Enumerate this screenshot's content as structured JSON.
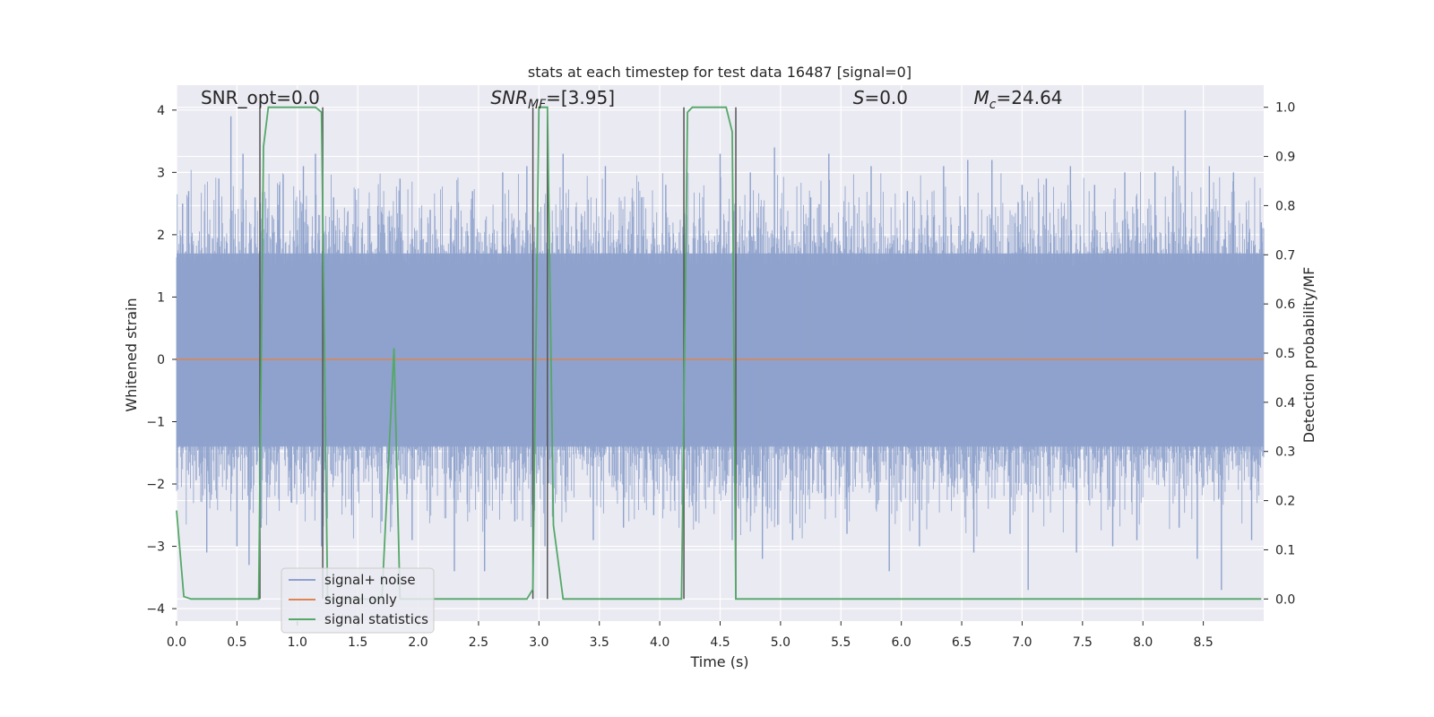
{
  "chart_data": {
    "type": "line",
    "title": "stats at each timestep for test data 16487 [signal=0]",
    "xlabel": "Time (s)",
    "ylabel": "Whitened strain",
    "y2label": "Detection probability/MF",
    "xlim": [
      0.0,
      9.0
    ],
    "ylim": [
      -4.2,
      4.4
    ],
    "y2lim": [
      -0.045,
      1.045
    ],
    "x_ticks": [
      "0.0",
      "0.5",
      "1.0",
      "1.5",
      "2.0",
      "2.5",
      "3.0",
      "3.5",
      "4.0",
      "4.5",
      "5.0",
      "5.5",
      "6.0",
      "6.5",
      "7.0",
      "7.5",
      "8.0",
      "8.5"
    ],
    "x_tick_values": [
      0.0,
      0.5,
      1.0,
      1.5,
      2.0,
      2.5,
      3.0,
      3.5,
      4.0,
      4.5,
      5.0,
      5.5,
      6.0,
      6.5,
      7.0,
      7.5,
      8.0,
      8.5
    ],
    "y_ticks": [
      "−4",
      "−3",
      "−2",
      "−1",
      "0",
      "1",
      "2",
      "3",
      "4"
    ],
    "y_tick_values": [
      -4,
      -3,
      -2,
      -1,
      0,
      1,
      2,
      3,
      4
    ],
    "y2_ticks": [
      "0.0",
      "0.1",
      "0.2",
      "0.3",
      "0.4",
      "0.5",
      "0.6",
      "0.7",
      "0.8",
      "0.9",
      "1.0"
    ],
    "y2_tick_values": [
      0.0,
      0.1,
      0.2,
      0.3,
      0.4,
      0.5,
      0.6,
      0.7,
      0.8,
      0.9,
      1.0
    ],
    "grid": true,
    "legend_position": "lower-left",
    "annotations": [
      {
        "label": "SNR_opt=0.0",
        "x": 0.2,
        "y": 4.1
      },
      {
        "label": "SNR",
        "sub": "MF",
        "suffix": "=[3.95]",
        "italic": true,
        "x": 2.6,
        "y": 4.1
      },
      {
        "label": "S",
        "sub": "",
        "suffix": "=0.0",
        "italic": true,
        "x": 5.6,
        "y": 4.1
      },
      {
        "label": "M",
        "sub": "c",
        "suffix": "=24.64",
        "italic": true,
        "x": 6.6,
        "y": 4.1
      }
    ],
    "series": [
      {
        "name": "signal+ noise",
        "color": "#8ea2cc",
        "noise_band": [
          -1.4,
          1.7
        ],
        "peaks": [
          [
            0.05,
            2.5
          ],
          [
            0.1,
            2.7
          ],
          [
            0.25,
            -3.1
          ],
          [
            0.35,
            2.9
          ],
          [
            0.45,
            3.9
          ],
          [
            0.5,
            -3.0
          ],
          [
            0.55,
            3.3
          ],
          [
            0.6,
            -3.3
          ],
          [
            0.65,
            2.6
          ],
          [
            0.7,
            -2.7
          ],
          [
            0.85,
            2.8
          ],
          [
            0.95,
            -2.3
          ],
          [
            1.05,
            3.1
          ],
          [
            1.15,
            3.3
          ],
          [
            1.2,
            -3.0
          ],
          [
            1.3,
            2.6
          ],
          [
            1.45,
            -2.5
          ],
          [
            1.6,
            2.3
          ],
          [
            1.7,
            -2.6
          ],
          [
            1.85,
            2.9
          ],
          [
            1.95,
            -2.9
          ],
          [
            2.1,
            2.4
          ],
          [
            2.3,
            -3.4
          ],
          [
            2.45,
            2.7
          ],
          [
            2.55,
            -3.4
          ],
          [
            2.7,
            3.0
          ],
          [
            2.8,
            -2.6
          ],
          [
            2.9,
            3.1
          ],
          [
            3.05,
            -3.0
          ],
          [
            3.2,
            3.3
          ],
          [
            3.35,
            2.2
          ],
          [
            3.45,
            -2.9
          ],
          [
            3.55,
            3.1
          ],
          [
            3.7,
            -2.7
          ],
          [
            3.85,
            2.6
          ],
          [
            3.95,
            -2.5
          ],
          [
            4.05,
            2.8
          ],
          [
            4.3,
            -2.6
          ],
          [
            4.5,
            3.3
          ],
          [
            4.6,
            -2.9
          ],
          [
            4.75,
            3.0
          ],
          [
            4.85,
            -3.2
          ],
          [
            4.95,
            3.4
          ],
          [
            5.1,
            -2.9
          ],
          [
            5.25,
            2.6
          ],
          [
            5.4,
            3.3
          ],
          [
            5.55,
            -2.8
          ],
          [
            5.75,
            3.1
          ],
          [
            5.9,
            -3.4
          ],
          [
            6.05,
            2.7
          ],
          [
            6.15,
            -3.0
          ],
          [
            6.35,
            3.1
          ],
          [
            6.55,
            3.2
          ],
          [
            6.6,
            -3.1
          ],
          [
            6.75,
            3.2
          ],
          [
            6.9,
            -2.8
          ],
          [
            7.0,
            2.8
          ],
          [
            7.05,
            -3.7
          ],
          [
            7.2,
            2.9
          ],
          [
            7.4,
            3.1
          ],
          [
            7.45,
            -3.1
          ],
          [
            7.6,
            2.8
          ],
          [
            7.75,
            -3.0
          ],
          [
            7.85,
            3.0
          ],
          [
            7.95,
            -2.9
          ],
          [
            8.1,
            3.0
          ],
          [
            8.25,
            3.1
          ],
          [
            8.3,
            -2.7
          ],
          [
            8.35,
            4.0
          ],
          [
            8.45,
            -3.2
          ],
          [
            8.55,
            3.1
          ],
          [
            8.65,
            -3.7
          ],
          [
            8.75,
            3.0
          ],
          [
            8.9,
            -2.9
          ],
          [
            8.98,
            2.2
          ]
        ]
      },
      {
        "name": "signal only",
        "color": "#dd8452",
        "x": [
          0.0,
          9.0
        ],
        "y": [
          0.0,
          0.0
        ]
      },
      {
        "name": "signal statistics",
        "color": "#55a868",
        "axis": "right",
        "x": [
          0.0,
          0.06,
          0.12,
          0.68,
          0.72,
          0.76,
          1.15,
          1.2,
          1.25,
          1.7,
          1.8,
          1.85,
          1.9,
          2.9,
          2.95,
          3.0,
          3.07,
          3.12,
          3.2,
          4.18,
          4.23,
          4.27,
          4.55,
          4.6,
          4.63,
          4.68,
          8.98
        ],
        "y": [
          0.18,
          0.005,
          0.0,
          0.0,
          0.92,
          1.0,
          1.0,
          0.99,
          0.0,
          0.0,
          0.51,
          0.0,
          0.0,
          0.0,
          0.02,
          1.0,
          1.0,
          0.15,
          0.0,
          0.0,
          0.99,
          1.0,
          1.0,
          0.95,
          0.0,
          0.0,
          0.0
        ]
      }
    ],
    "vertical_markers": {
      "color": "#555555",
      "x": [
        0.69,
        1.21,
        2.95,
        3.07,
        4.2,
        4.63
      ],
      "y_range": [
        0,
        1
      ]
    }
  }
}
